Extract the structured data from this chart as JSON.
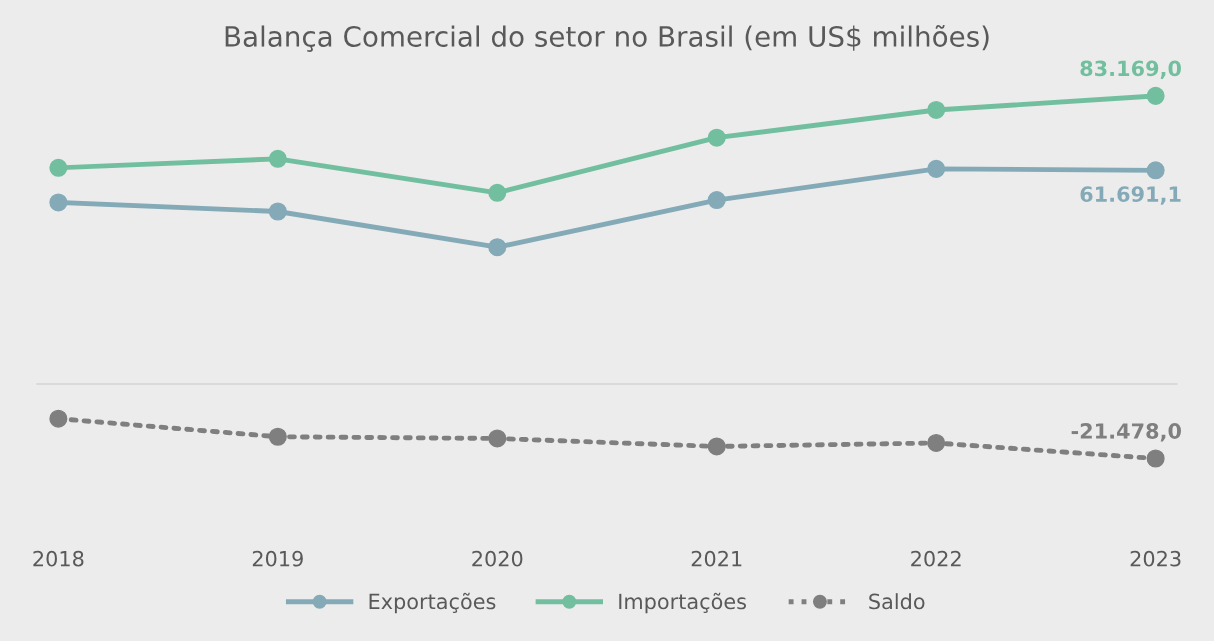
{
  "chart_data": {
    "type": "line",
    "title": "Balança Comercial do setor no Brasil (em US$ milhões)",
    "tick_labels": "x",
    "categories": [
      "2018",
      "2019",
      "2020",
      "2021",
      "2022",
      "2023"
    ],
    "series": [
      {
        "name": "Exportações",
        "color": "#84aab8",
        "line_style": "solid",
        "values": [
          52400,
          49800,
          39500,
          53100,
          62100,
          61691.1
        ],
        "value_labels": [
          null,
          null,
          null,
          null,
          null,
          "61.691,1"
        ]
      },
      {
        "name": "Importações",
        "color": "#72bfa0",
        "line_style": "solid",
        "values": [
          62400,
          65000,
          55200,
          71100,
          79100,
          83169.0
        ],
        "value_labels": [
          null,
          null,
          null,
          null,
          null,
          "83.169,0"
        ]
      },
      {
        "name": "Saldo",
        "color": "#7f7f7f",
        "line_style": "dotted",
        "values": [
          -10000,
          -15200,
          -15700,
          -18000,
          -17000,
          -21478.0
        ],
        "value_labels": [
          null,
          null,
          null,
          null,
          null,
          "-21.478,0"
        ]
      }
    ],
    "marker": "circle",
    "grid": false,
    "legend": "bottom"
  }
}
